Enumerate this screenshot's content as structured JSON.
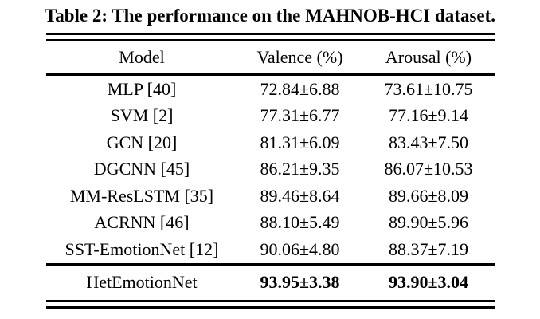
{
  "caption": "Table 2: The performance on the MAHNOB-HCI dataset.",
  "table": {
    "headers": {
      "model": "Model",
      "valence": "Valence (%)",
      "arousal": "Arousal (%)"
    },
    "rows": [
      {
        "model": "MLP [40]",
        "valence": "72.84±6.88",
        "arousal": "73.61±10.75"
      },
      {
        "model": "SVM [2]",
        "valence": "77.31±6.77",
        "arousal": "77.16±9.14"
      },
      {
        "model": "GCN [20]",
        "valence": "81.31±6.09",
        "arousal": "83.43±7.50"
      },
      {
        "model": "DGCNN [45]",
        "valence": "86.21±9.35",
        "arousal": "86.07±10.53"
      },
      {
        "model": "MM-ResLSTM [35]",
        "valence": "89.46±8.64",
        "arousal": "89.66±8.09"
      },
      {
        "model": "ACRNN [46]",
        "valence": "88.10±5.49",
        "arousal": "89.90±5.96"
      },
      {
        "model": "SST-EmotionNet [12]",
        "valence": "90.06±4.80",
        "arousal": "88.37±7.19"
      }
    ],
    "best_row": {
      "model": "HetEmotionNet",
      "valence": "93.95±3.38",
      "arousal": "93.90±3.04"
    }
  },
  "colors": {
    "text": "#000000",
    "background": "#ffffff",
    "rule": "#000000"
  }
}
